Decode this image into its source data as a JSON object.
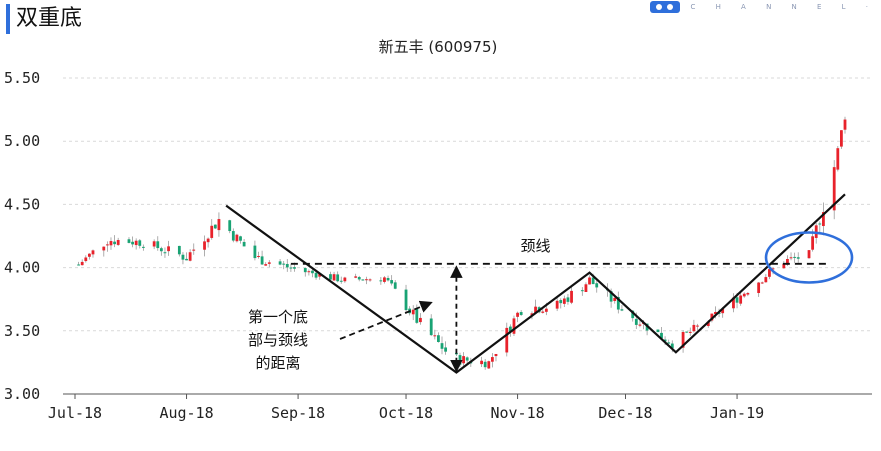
{
  "header": {
    "page_title": "双重底",
    "logo_text": "C H A N N E L ·"
  },
  "colors": {
    "up": "#e8222b",
    "down": "#19a374",
    "accent": "#2f6fdb",
    "line": "#111111"
  },
  "chart_data": {
    "type": "candlestick",
    "title": "新五丰 (600975)",
    "y_ticks": [
      "5.50",
      "5.00",
      "4.50",
      "4.00",
      "3.50",
      "3.00"
    ],
    "ylim": [
      3.0,
      5.5
    ],
    "x_ticks": [
      "Jul-18",
      "Aug-18",
      "Sep-18",
      "Oct-18",
      "Nov-18",
      "Dec-18",
      "Jan-19"
    ],
    "grid": "horizontal dashed",
    "annotations": {
      "neckline_label": "颈线",
      "distance_label_lines": [
        "第一个底",
        "部与颈线",
        "的距离"
      ],
      "neckline_value": 4.03
    },
    "pattern_path": [
      {
        "date": "2018-08-12",
        "price": 4.49
      },
      {
        "date": "2018-10-15",
        "price": 3.17
      },
      {
        "date": "2018-11-21",
        "price": 3.96
      },
      {
        "date": "2018-12-15",
        "price": 3.33
      },
      {
        "date": "2019-01-31",
        "price": 4.58
      }
    ],
    "anchors": [
      {
        "date": "2018-07-01",
        "price": 4.0,
        "vol": 0.04
      },
      {
        "date": "2018-07-10",
        "price": 4.22,
        "vol": 0.06
      },
      {
        "date": "2018-07-20",
        "price": 4.2,
        "vol": 0.05
      },
      {
        "date": "2018-08-01",
        "price": 4.08,
        "vol": 0.06
      },
      {
        "date": "2018-08-10",
        "price": 4.38,
        "vol": 0.07
      },
      {
        "date": "2018-08-20",
        "price": 4.08,
        "vol": 0.06
      },
      {
        "date": "2018-09-01",
        "price": 3.98,
        "vol": 0.04
      },
      {
        "date": "2018-09-14",
        "price": 3.9,
        "vol": 0.04
      },
      {
        "date": "2018-09-25",
        "price": 3.92,
        "vol": 0.04
      },
      {
        "date": "2018-10-05",
        "price": 3.55,
        "vol": 0.07
      },
      {
        "date": "2018-10-14",
        "price": 3.28,
        "vol": 0.06
      },
      {
        "date": "2018-10-24",
        "price": 3.25,
        "vol": 0.05
      },
      {
        "date": "2018-11-02",
        "price": 3.68,
        "vol": 0.07
      },
      {
        "date": "2018-11-12",
        "price": 3.7,
        "vol": 0.06
      },
      {
        "date": "2018-11-21",
        "price": 3.9,
        "vol": 0.06
      },
      {
        "date": "2018-12-01",
        "price": 3.65,
        "vol": 0.06
      },
      {
        "date": "2018-12-14",
        "price": 3.4,
        "vol": 0.05
      },
      {
        "date": "2018-12-25",
        "price": 3.6,
        "vol": 0.05
      },
      {
        "date": "2019-01-05",
        "price": 3.85,
        "vol": 0.05
      },
      {
        "date": "2019-01-14",
        "price": 4.05,
        "vol": 0.05
      },
      {
        "date": "2019-01-21",
        "price": 4.1,
        "vol": 0.05
      },
      {
        "date": "2019-01-25",
        "price": 4.5,
        "vol": 0.1
      },
      {
        "date": "2019-01-29",
        "price": 4.9,
        "vol": 0.12
      },
      {
        "date": "2019-01-31",
        "price": 5.22,
        "vol": 0.08
      }
    ],
    "highlight_circle": {
      "date": "2019-01-21",
      "price": 4.08
    }
  }
}
